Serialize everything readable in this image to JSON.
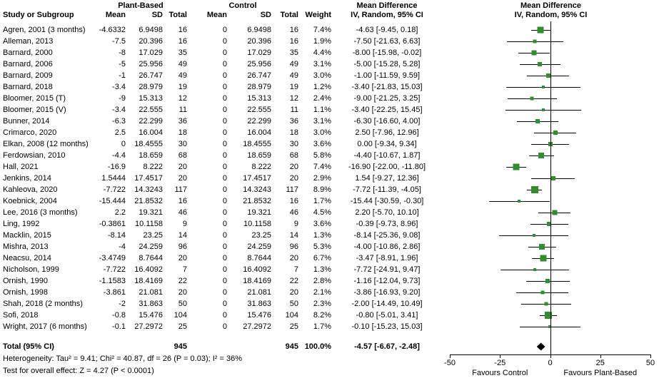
{
  "table": {
    "group_headers": {
      "plant": "Plant-Based",
      "control": "Control",
      "md_text": "Mean Difference",
      "md_plot": "Mean Difference"
    },
    "headers": {
      "study": "Study or Subgroup",
      "pb_mean": "Mean",
      "pb_sd": "SD",
      "pb_total": "Total",
      "c_mean": "Mean",
      "c_sd": "SD",
      "c_total": "Total",
      "weight": "Weight",
      "ci_text": "IV, Random, 95% CI",
      "ci_plot": "IV, Random, 95% CI"
    }
  },
  "colors": {
    "marker": "#2f8f2f",
    "line": "#000000",
    "diamond": "#000000"
  },
  "chart_data": {
    "type": "forest",
    "x_axis": {
      "min": -50,
      "max": 50,
      "ticks": [
        -50,
        -25,
        0,
        25,
        50
      ],
      "left_label": "Favours Control",
      "right_label": "Favours Plant-Based"
    },
    "studies": [
      {
        "study": "Agren, 2001 (3 months)",
        "pb_mean": "-4.6332",
        "pb_sd": "6.9498",
        "pb_total": "16",
        "c_mean": "0",
        "c_sd": "6.9498",
        "c_total": "16",
        "weight": "7.4%",
        "md": "-4.63 [-9.45, 0.18]",
        "est": -4.63,
        "lo": -9.45,
        "hi": 0.18,
        "w": 7.4
      },
      {
        "study": "Alleman, 2013",
        "pb_mean": "-7.5",
        "pb_sd": "20.396",
        "pb_total": "16",
        "c_mean": "0",
        "c_sd": "20.396",
        "c_total": "16",
        "weight": "1.9%",
        "md": "-7.50 [-21.63, 6.63]",
        "est": -7.5,
        "lo": -21.63,
        "hi": 6.63,
        "w": 1.9
      },
      {
        "study": "Barnard, 2000",
        "pb_mean": "-8",
        "pb_sd": "17.029",
        "pb_total": "35",
        "c_mean": "0",
        "c_sd": "17.029",
        "c_total": "35",
        "weight": "4.4%",
        "md": "-8.00 [-15.98, -0.02]",
        "est": -8.0,
        "lo": -15.98,
        "hi": -0.02,
        "w": 4.4
      },
      {
        "study": "Barnard, 2006",
        "pb_mean": "-5",
        "pb_sd": "25.956",
        "pb_total": "49",
        "c_mean": "0",
        "c_sd": "25.956",
        "c_total": "49",
        "weight": "3.1%",
        "md": "-5.00 [-15.28, 5.28]",
        "est": -5.0,
        "lo": -15.28,
        "hi": 5.28,
        "w": 3.1
      },
      {
        "study": "Barnard, 2009",
        "pb_mean": "-1",
        "pb_sd": "26.747",
        "pb_total": "49",
        "c_mean": "0",
        "c_sd": "26.747",
        "c_total": "49",
        "weight": "3.0%",
        "md": "-1.00 [-11.59, 9.59]",
        "est": -1.0,
        "lo": -11.59,
        "hi": 9.59,
        "w": 3.0
      },
      {
        "study": "Barnard, 2018",
        "pb_mean": "-3.4",
        "pb_sd": "28.979",
        "pb_total": "19",
        "c_mean": "0",
        "c_sd": "28.979",
        "c_total": "19",
        "weight": "1.2%",
        "md": "-3.40 [-21.83, 15.03]",
        "est": -3.4,
        "lo": -21.83,
        "hi": 15.03,
        "w": 1.2
      },
      {
        "study": "Bloomer, 2015 (T)",
        "pb_mean": "-9",
        "pb_sd": "15.313",
        "pb_total": "12",
        "c_mean": "0",
        "c_sd": "15.313",
        "c_total": "12",
        "weight": "2.4%",
        "md": "-9.00 [-21.25, 3.25]",
        "est": -9.0,
        "lo": -21.25,
        "hi": 3.25,
        "w": 2.4
      },
      {
        "study": "Bloomer, 2015 (V)",
        "pb_mean": "-3.4",
        "pb_sd": "22.555",
        "pb_total": "11",
        "c_mean": "0",
        "c_sd": "22.555",
        "c_total": "11",
        "weight": "1.1%",
        "md": "-3.40 [-22.25, 15.45]",
        "est": -3.4,
        "lo": -22.25,
        "hi": 15.45,
        "w": 1.1
      },
      {
        "study": "Bunner, 2014",
        "pb_mean": "-6.3",
        "pb_sd": "22.299",
        "pb_total": "36",
        "c_mean": "0",
        "c_sd": "22.299",
        "c_total": "36",
        "weight": "3.1%",
        "md": "-6.30 [-16.60, 4.00]",
        "est": -6.3,
        "lo": -16.6,
        "hi": 4.0,
        "w": 3.1
      },
      {
        "study": "Crimarco, 2020",
        "pb_mean": "2.5",
        "pb_sd": "16.004",
        "pb_total": "18",
        "c_mean": "0",
        "c_sd": "16.004",
        "c_total": "18",
        "weight": "3.0%",
        "md": "2.50 [-7.96, 12.96]",
        "est": 2.5,
        "lo": -7.96,
        "hi": 12.96,
        "w": 3.0
      },
      {
        "study": "Elkan, 2008 (12 months)",
        "pb_mean": "0",
        "pb_sd": "18.4555",
        "pb_total": "30",
        "c_mean": "0",
        "c_sd": "18.4555",
        "c_total": "30",
        "weight": "3.6%",
        "md": "0.00 [-9.34, 9.34]",
        "est": 0.0,
        "lo": -9.34,
        "hi": 9.34,
        "w": 3.6
      },
      {
        "study": "Ferdowsian, 2010",
        "pb_mean": "-4.4",
        "pb_sd": "18.659",
        "pb_total": "68",
        "c_mean": "0",
        "c_sd": "18.659",
        "c_total": "68",
        "weight": "5.8%",
        "md": "-4.40 [-10.67, 1.87]",
        "est": -4.4,
        "lo": -10.67,
        "hi": 1.87,
        "w": 5.8
      },
      {
        "study": "Hall, 2021",
        "pb_mean": "-16.9",
        "pb_sd": "8.222",
        "pb_total": "20",
        "c_mean": "0",
        "c_sd": "8.222",
        "c_total": "20",
        "weight": "7.4%",
        "md": "-16.90 [-22.00, -11.80]",
        "est": -16.9,
        "lo": -22.0,
        "hi": -11.8,
        "w": 7.4
      },
      {
        "study": "Jenkins, 2014",
        "pb_mean": "1.5444",
        "pb_sd": "17.4517",
        "pb_total": "20",
        "c_mean": "0",
        "c_sd": "17.4517",
        "c_total": "20",
        "weight": "2.9%",
        "md": "1.54 [-9.27, 12.36]",
        "est": 1.54,
        "lo": -9.27,
        "hi": 12.36,
        "w": 2.9
      },
      {
        "study": "Kahleova, 2020",
        "pb_mean": "-7.722",
        "pb_sd": "14.3243",
        "pb_total": "117",
        "c_mean": "0",
        "c_sd": "14.3243",
        "c_total": "117",
        "weight": "8.9%",
        "md": "-7.72 [-11.39, -4.05]",
        "est": -7.72,
        "lo": -11.39,
        "hi": -4.05,
        "w": 8.9
      },
      {
        "study": "Koebnick, 2004",
        "pb_mean": "-15.444",
        "pb_sd": "21.8532",
        "pb_total": "16",
        "c_mean": "0",
        "c_sd": "21.8532",
        "c_total": "16",
        "weight": "1.7%",
        "md": "-15.44 [-30.59, -0.30]",
        "est": -15.44,
        "lo": -30.59,
        "hi": -0.3,
        "w": 1.7
      },
      {
        "study": "Lee, 2016 (3 months)",
        "pb_mean": "2.2",
        "pb_sd": "19.321",
        "pb_total": "46",
        "c_mean": "0",
        "c_sd": "19.321",
        "c_total": "46",
        "weight": "4.5%",
        "md": "2.20 [-5.70, 10.10]",
        "est": 2.2,
        "lo": -5.7,
        "hi": 10.1,
        "w": 4.5
      },
      {
        "study": "Ling, 1992",
        "pb_mean": "-0.3861",
        "pb_sd": "10.1158",
        "pb_total": "9",
        "c_mean": "0",
        "c_sd": "10.1158",
        "c_total": "9",
        "weight": "3.6%",
        "md": "-0.39 [-9.73, 8.96]",
        "est": -0.39,
        "lo": -9.73,
        "hi": 8.96,
        "w": 3.6
      },
      {
        "study": "Macklin, 2015",
        "pb_mean": "-8.14",
        "pb_sd": "23.25",
        "pb_total": "14",
        "c_mean": "0",
        "c_sd": "23.25",
        "c_total": "14",
        "weight": "1.3%",
        "md": "-8.14 [-25.36, 9.08]",
        "est": -8.14,
        "lo": -25.36,
        "hi": 9.08,
        "w": 1.3
      },
      {
        "study": "Mishra, 2013",
        "pb_mean": "-4",
        "pb_sd": "24.259",
        "pb_total": "96",
        "c_mean": "0",
        "c_sd": "24.259",
        "c_total": "96",
        "weight": "5.3%",
        "md": "-4.00 [-10.86, 2.86]",
        "est": -4.0,
        "lo": -10.86,
        "hi": 2.86,
        "w": 5.3
      },
      {
        "study": "Neacsu, 2014",
        "pb_mean": "-3.4749",
        "pb_sd": "8.7644",
        "pb_total": "20",
        "c_mean": "0",
        "c_sd": "8.7644",
        "c_total": "20",
        "weight": "6.7%",
        "md": "-3.47 [-8.91, 1.96]",
        "est": -3.47,
        "lo": -8.91,
        "hi": 1.96,
        "w": 6.7
      },
      {
        "study": "Nicholson, 1999",
        "pb_mean": "-7.722",
        "pb_sd": "16.4092",
        "pb_total": "7",
        "c_mean": "0",
        "c_sd": "16.4092",
        "c_total": "7",
        "weight": "1.3%",
        "md": "-7.72 [-24.91, 9.47]",
        "est": -7.72,
        "lo": -24.91,
        "hi": 9.47,
        "w": 1.3
      },
      {
        "study": "Ornish, 1990",
        "pb_mean": "-1.1583",
        "pb_sd": "18.4169",
        "pb_total": "22",
        "c_mean": "0",
        "c_sd": "18.4169",
        "c_total": "22",
        "weight": "2.8%",
        "md": "-1.16 [-12.04, 9.73]",
        "est": -1.16,
        "lo": -12.04,
        "hi": 9.73,
        "w": 2.8
      },
      {
        "study": "Ornish, 1998",
        "pb_mean": "-3.861",
        "pb_sd": "21.081",
        "pb_total": "20",
        "c_mean": "0",
        "c_sd": "21.081",
        "c_total": "20",
        "weight": "2.1%",
        "md": "-3.86 [-16.93, 9.20]",
        "est": -3.86,
        "lo": -16.93,
        "hi": 9.2,
        "w": 2.1
      },
      {
        "study": "Shah, 2018 (2 months)",
        "pb_mean": "-2",
        "pb_sd": "31.863",
        "pb_total": "50",
        "c_mean": "0",
        "c_sd": "31.863",
        "c_total": "50",
        "weight": "2.3%",
        "md": "-2.00 [-14.49, 10.49]",
        "est": -2.0,
        "lo": -14.49,
        "hi": 10.49,
        "w": 2.3
      },
      {
        "study": "Sofi, 2018",
        "pb_mean": "-0.8",
        "pb_sd": "15.476",
        "pb_total": "104",
        "c_mean": "0",
        "c_sd": "15.476",
        "c_total": "104",
        "weight": "8.2%",
        "md": "-0.80 [-5.01, 3.41]",
        "est": -0.8,
        "lo": -5.01,
        "hi": 3.41,
        "w": 8.2
      },
      {
        "study": "Wright, 2017 (6 months)",
        "pb_mean": "-0.1",
        "pb_sd": "27.2972",
        "pb_total": "25",
        "c_mean": "0",
        "c_sd": "27.2972",
        "c_total": "25",
        "weight": "1.7%",
        "md": "-0.10 [-15.23, 15.03]",
        "est": -0.1,
        "lo": -15.23,
        "hi": 15.03,
        "w": 1.7
      }
    ],
    "total": {
      "label": "Total (95% CI)",
      "pb_total": "945",
      "c_total": "945",
      "weight": "100.0%",
      "md": "-4.57 [-6.67, -2.48]",
      "est": -4.57,
      "lo": -6.67,
      "hi": -2.48
    },
    "footnotes": [
      "Heterogeneity: Tau² = 9.41; Chi² = 40.87, df = 26 (P = 0.03); I² = 36%",
      "Test for overall effect: Z = 4.27 (P < 0.0001)"
    ]
  }
}
